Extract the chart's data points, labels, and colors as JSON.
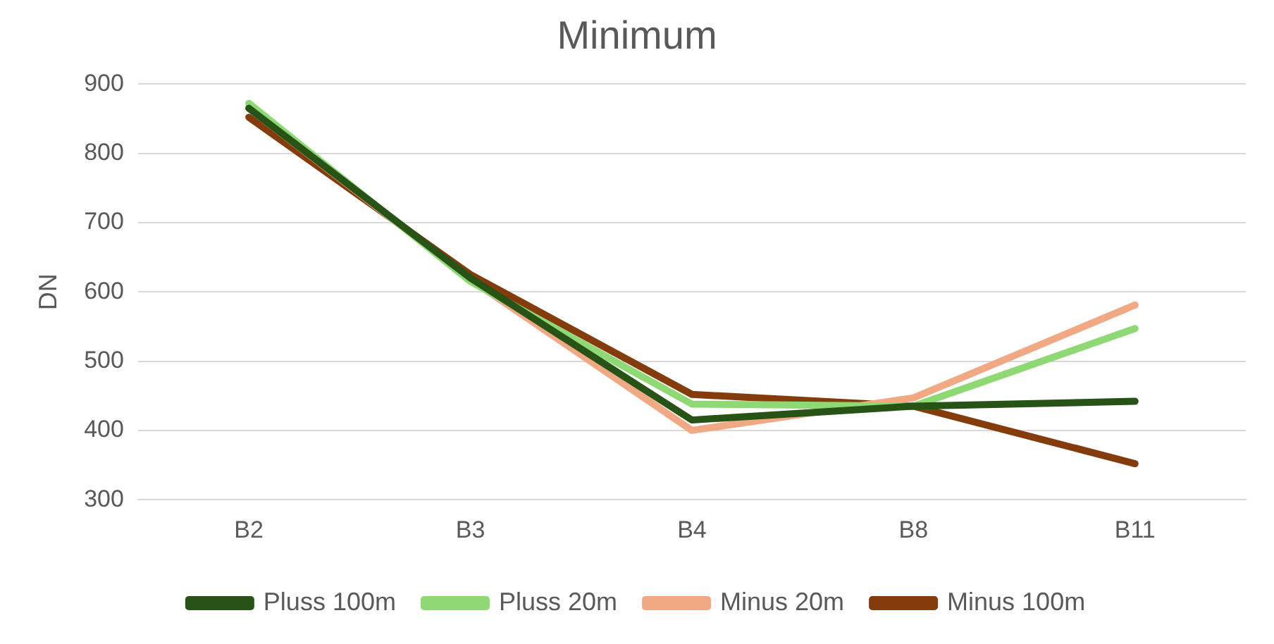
{
  "chart_data": {
    "type": "line",
    "title": "Minimum",
    "ylabel": "DN",
    "categories": [
      "B2",
      "B3",
      "B4",
      "B8",
      "B11"
    ],
    "series": [
      {
        "name": "Pluss 100m",
        "color": "#275317",
        "values": [
          865,
          620,
          415,
          435,
          442
        ]
      },
      {
        "name": "Pluss 20m",
        "color": "#8ed973",
        "values": [
          872,
          615,
          438,
          435,
          547
        ]
      },
      {
        "name": "Minus 20m",
        "color": "#f1a983",
        "values": [
          865,
          618,
          400,
          447,
          581
        ]
      },
      {
        "name": "Minus 100m",
        "color": "#843c0c",
        "values": [
          852,
          625,
          452,
          435,
          352
        ]
      }
    ],
    "ylim": [
      300,
      900
    ],
    "yticks": [
      300,
      400,
      500,
      600,
      700,
      800,
      900
    ],
    "grid": "y",
    "legend": "bottom",
    "marker": "none",
    "line_style": "solid"
  }
}
